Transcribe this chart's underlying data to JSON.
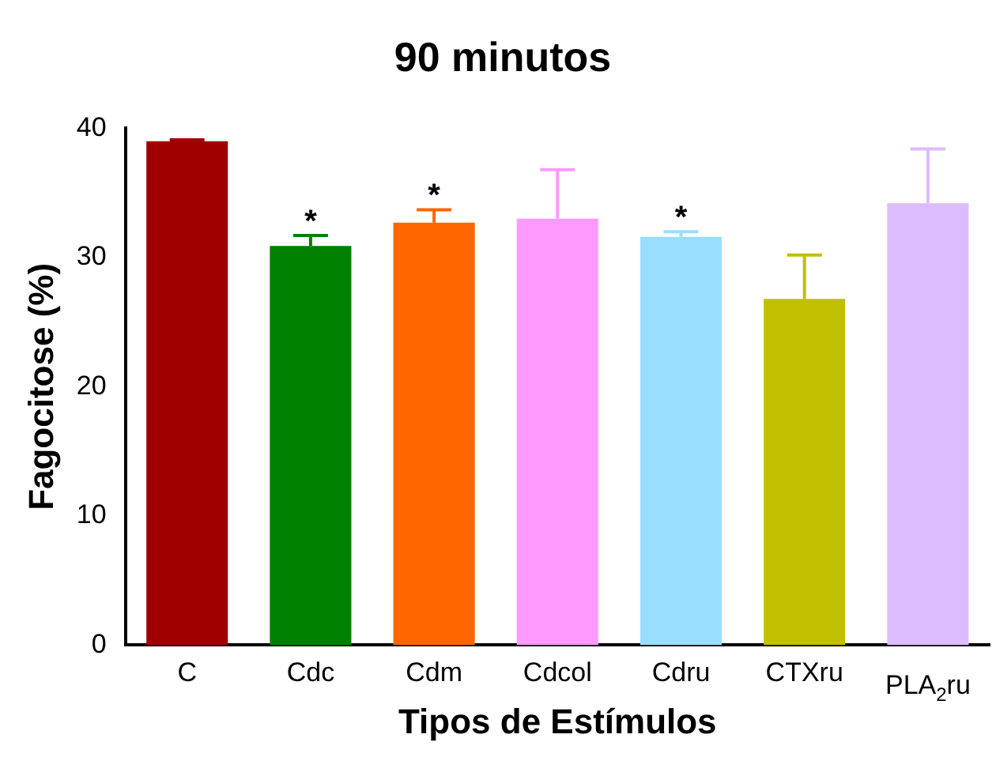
{
  "chart_data": {
    "type": "bar",
    "title": "90 minutos",
    "xlabel": "Tipos de Estímulos",
    "ylabel": "Fagocitose (%)",
    "categories": [
      "C",
      "Cdc",
      "Cdm",
      "Cdcol",
      "Cdru",
      "CTXru",
      "PLA$_{2}$ru"
    ],
    "values": [
      39.0,
      30.9,
      32.7,
      33.0,
      31.6,
      26.8,
      34.2
    ],
    "colors": [
      "#a00000",
      "#008000",
      "#ff6600",
      "#ff99ff",
      "#99ddff",
      "#c0c000",
      "#ddbbff"
    ],
    "errors": [
      [
        39.0,
        39.1
      ],
      [
        30.9,
        31.7
      ],
      [
        32.7,
        33.7
      ],
      [
        33.0,
        36.8
      ],
      [
        31.6,
        32.0
      ],
      [
        26.8,
        30.2
      ],
      [
        34.2,
        38.4
      ]
    ],
    "ylim": [
      0,
      40
    ],
    "yticks": [
      0,
      10,
      20,
      30,
      40
    ],
    "grid": false,
    "legend": false,
    "annotations": [
      {
        "text": "*",
        "x": "Cdc",
        "y": 31.7
      },
      {
        "text": "*",
        "x": "Cdm",
        "y": 33.7
      },
      {
        "text": "*",
        "x": "Cdru",
        "y": 32.0
      }
    ]
  }
}
